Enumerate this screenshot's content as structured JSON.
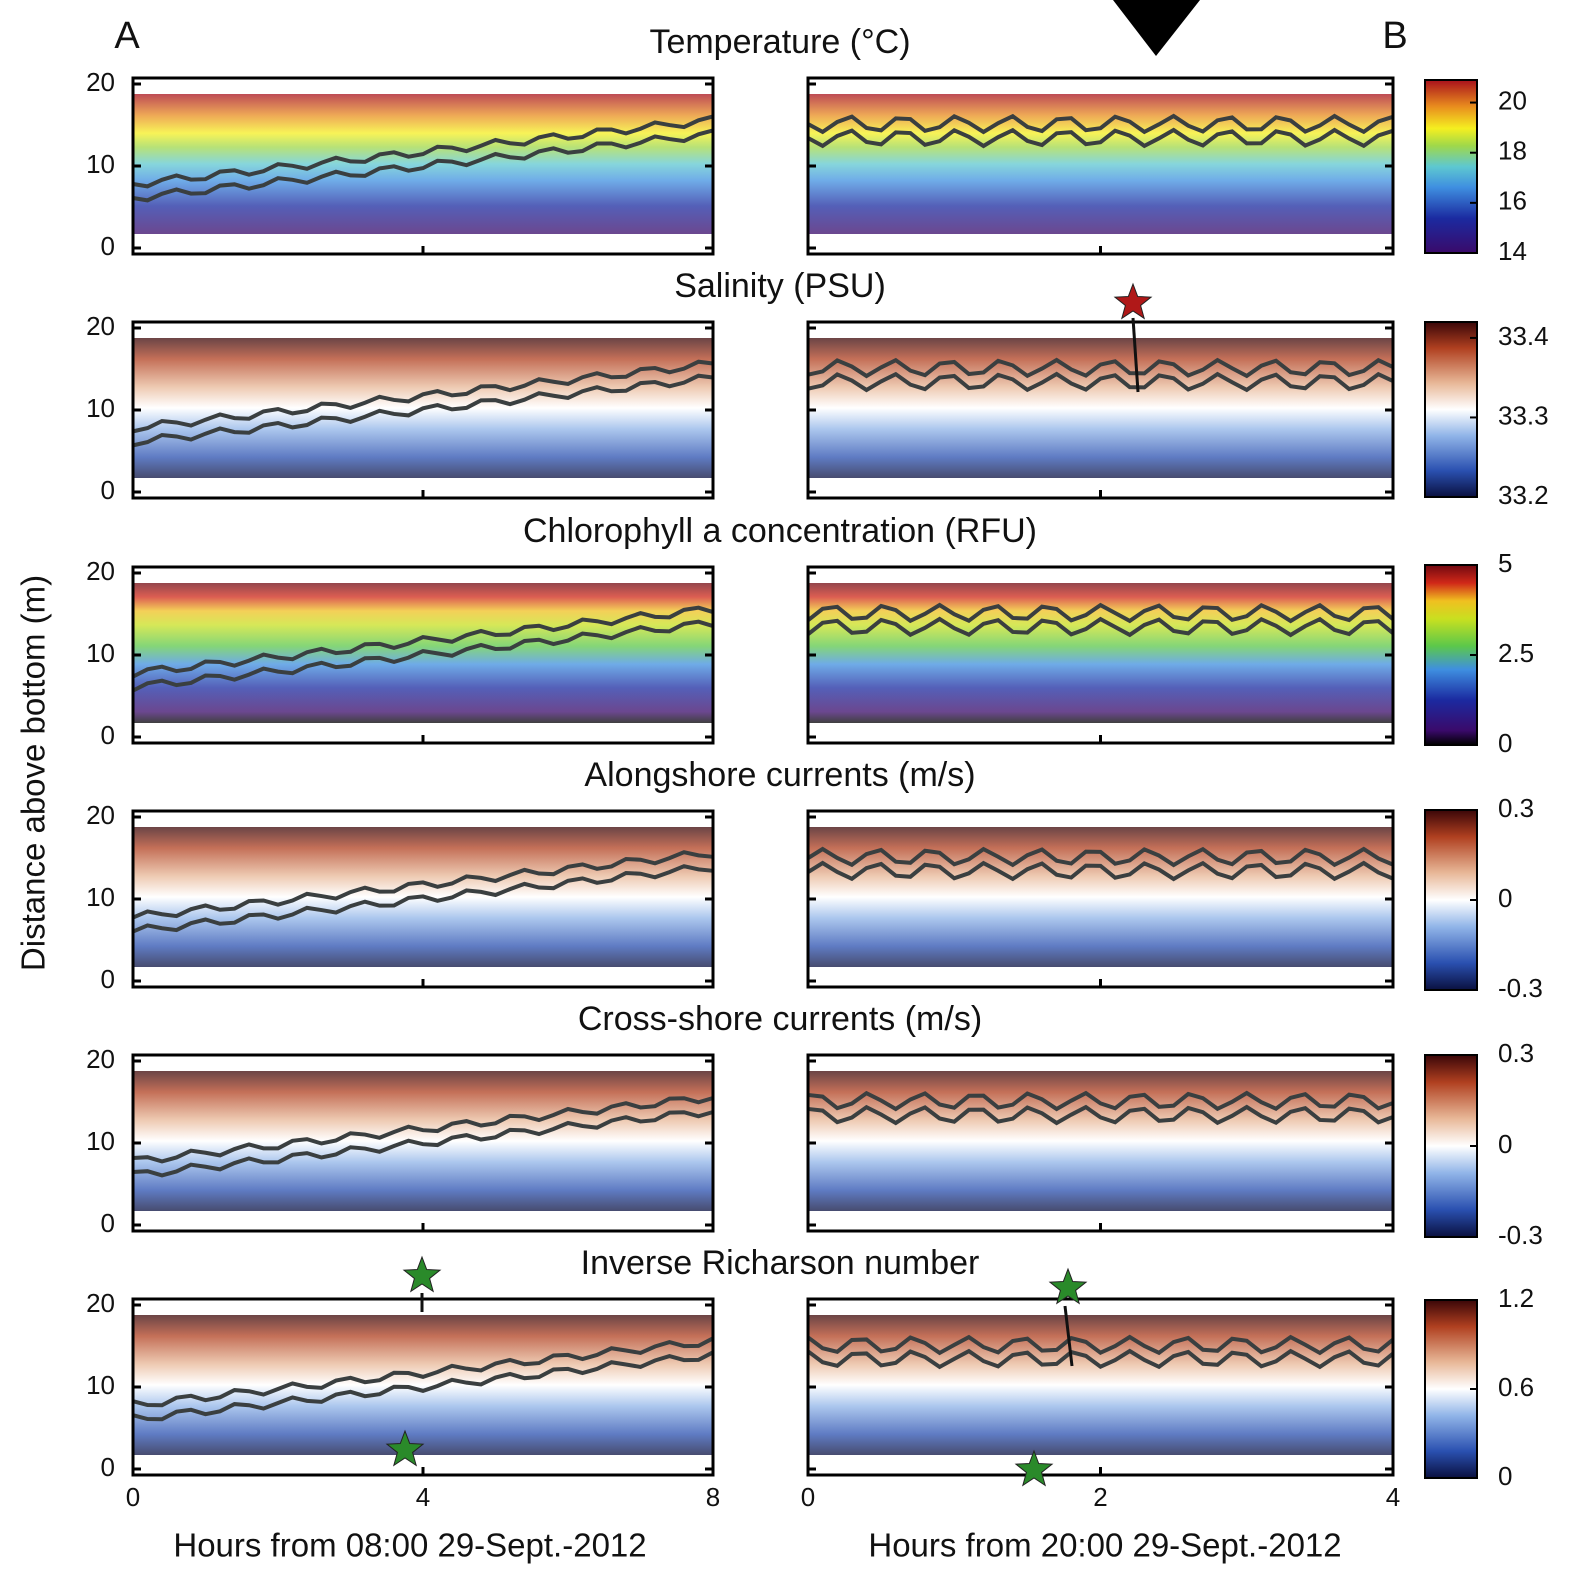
{
  "chart_data": {
    "type": "heatmap",
    "panel_labels": [
      "A",
      "B"
    ],
    "y_label": "Distance above bottom (m)",
    "ylim": [
      0,
      20
    ],
    "yticks": [
      0,
      10,
      20
    ],
    "panels": [
      {
        "xlim": [
          0,
          8
        ],
        "xticks": [
          0,
          4,
          8
        ],
        "x_label": "Hours from 08:00 29-Sept.-2012"
      },
      {
        "xlim": [
          0,
          4
        ],
        "xticks": [
          0,
          2,
          4
        ],
        "x_label": "Hours from 20:00 29-Sept.-2012"
      }
    ],
    "rows": [
      {
        "title": "Temperature (°C)",
        "colormap": "parula",
        "clim": [
          14,
          20.9
        ],
        "cticks": [
          14,
          16,
          18,
          20
        ]
      },
      {
        "title": "Salinity (PSU)",
        "colormap": "diverging",
        "clim": [
          33.2,
          33.42
        ],
        "cticks": [
          33.2,
          33.3,
          33.4
        ]
      },
      {
        "title": "Chlorophyll a concentration (RFU)",
        "colormap": "jet",
        "clim": [
          0,
          5
        ],
        "cticks": [
          0,
          2.5,
          5
        ]
      },
      {
        "title": "Alongshore currents (m/s)",
        "colormap": "diverging",
        "clim": [
          -0.3,
          0.3
        ],
        "cticks": [
          -0.3,
          0,
          0.3
        ]
      },
      {
        "title": "Cross-shore currents (m/s)",
        "colormap": "diverging",
        "clim": [
          -0.3,
          0.3
        ],
        "cticks": [
          -0.3,
          0,
          0.3
        ]
      },
      {
        "title": "Inverse Richarson number",
        "colormap": "diverging",
        "clim": [
          0,
          1.2
        ],
        "cticks": [
          0,
          0.6,
          1.2
        ]
      }
    ]
  }
}
